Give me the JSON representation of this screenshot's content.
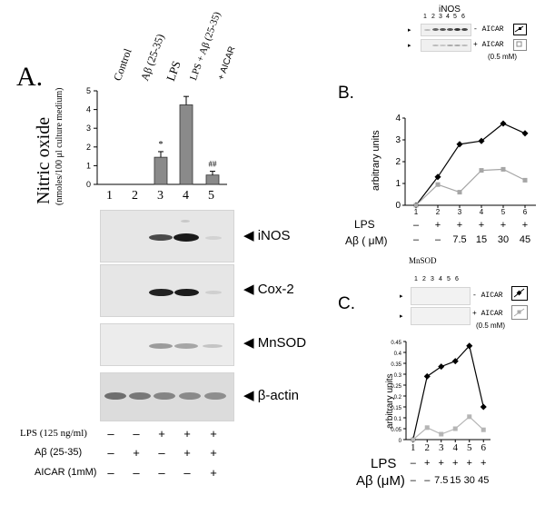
{
  "panelA": {
    "label": "A.",
    "col_headers": [
      "Control",
      "Aβ (25-35)",
      "LPS",
      "LPS + Aβ (25-35)",
      "+ AICAR"
    ],
    "ylabel_main": "Nitric oxide",
    "ylabel_sub": "(nmoles/100 μl culture medium)",
    "lane_numbers": [
      "1",
      "2",
      "3",
      "4",
      "5"
    ],
    "sig_marks": [
      "*",
      "##"
    ],
    "blot_labels": [
      "iNOS",
      "Cox-2",
      "MnSOD",
      "β-actin"
    ],
    "treatments": [
      {
        "label": "LPS (125 ng/ml)",
        "signs": [
          "–",
          "–",
          "+",
          "+",
          "+"
        ]
      },
      {
        "label": "Aβ (25-35)",
        "signs": [
          "–",
          "+",
          "–",
          "+",
          "+"
        ]
      },
      {
        "label": "AICAR (1mM)",
        "signs": [
          "–",
          "–",
          "–",
          "–",
          "+"
        ]
      }
    ]
  },
  "panelB": {
    "label": "B.",
    "blot_title": "iNOS",
    "blot_lanes": [
      "1",
      "2",
      "3",
      "4",
      "5",
      "6"
    ],
    "row1_label": "- AICAR",
    "row2_label": "+ AICAR",
    "conc_note": "(0.5 mM)",
    "ylabel": "arbitrary units",
    "lanes": [
      "1",
      "2",
      "3",
      "4",
      "5",
      "6"
    ],
    "lps_label": "LPS",
    "lps_signs": [
      "–",
      "+",
      "+",
      "+",
      "+",
      "+"
    ],
    "ab_label": "Aβ ( μM)",
    "ab_values": [
      "–",
      "–",
      "7.5",
      "15",
      "30",
      "45"
    ]
  },
  "panelC": {
    "label": "C.",
    "title": "MnSOD",
    "blot_lanes": [
      "1",
      "2",
      "3",
      "4",
      "5",
      "6"
    ],
    "row1_label": "- AICAR",
    "row2_label": "+ AICAR",
    "conc_note": "(0.5 mM)",
    "ylabel": "arbitrary units",
    "lanes": [
      "1",
      "2",
      "3",
      "4",
      "5",
      "6"
    ],
    "lps_label": "LPS",
    "lps_signs": [
      "–",
      "+",
      "+",
      "+",
      "+",
      "+"
    ],
    "ab_label": "Aβ (μM)",
    "ab_values": [
      "–",
      "–",
      "7.5",
      "15",
      "30",
      "45"
    ]
  },
  "chart_data": [
    {
      "type": "bar",
      "categories": [
        "1",
        "2",
        "3",
        "4",
        "5"
      ],
      "values": [
        0,
        0,
        1.45,
        4.25,
        0.5
      ],
      "errors": [
        0,
        0,
        0.3,
        0.45,
        0.2
      ],
      "ylabel": "Nitric oxide (nmoles/100 μl culture medium)",
      "ylim": [
        0,
        5
      ],
      "yticks": [
        0,
        1,
        2,
        3,
        4,
        5
      ],
      "bar_color": "#8a8a8a"
    },
    {
      "type": "line",
      "x": [
        1,
        2,
        3,
        4,
        5,
        6
      ],
      "series": [
        {
          "name": "- AICAR",
          "values": [
            0,
            1.3,
            2.8,
            2.95,
            3.75,
            3.3
          ],
          "color": "#000000",
          "marker": "diamond"
        },
        {
          "name": "+ AICAR",
          "values": [
            0,
            0.95,
            0.6,
            1.6,
            1.65,
            1.15
          ],
          "color": "#a6a6a6",
          "marker": "square"
        }
      ],
      "ylabel": "arbitrary units",
      "ylim": [
        0,
        4
      ],
      "yticks": [
        0,
        1,
        2,
        3,
        4
      ]
    },
    {
      "type": "line",
      "x": [
        1,
        2,
        3,
        4,
        5,
        6
      ],
      "series": [
        {
          "name": "- AICAR",
          "values": [
            0,
            0.29,
            0.335,
            0.36,
            0.43,
            0.15
          ],
          "color": "#000000",
          "marker": "diamond"
        },
        {
          "name": "+ AICAR",
          "values": [
            0,
            0.055,
            0.025,
            0.05,
            0.105,
            0.045
          ],
          "color": "#b5b5b5",
          "marker": "square"
        }
      ],
      "ylabel": "arbitrary units",
      "ylim": [
        0,
        0.45
      ],
      "yticks": [
        0,
        0.05,
        0.1,
        0.15,
        0.2,
        0.25,
        0.3,
        0.35,
        0.4,
        0.45
      ]
    }
  ]
}
